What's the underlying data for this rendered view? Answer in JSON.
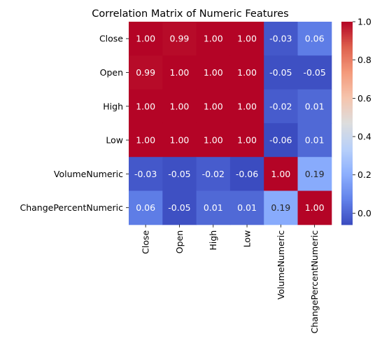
{
  "chart_data": {
    "type": "heatmap",
    "title": "Correlation Matrix of Numeric Features",
    "row_labels": [
      "Close",
      "Open",
      "High",
      "Low",
      "VolumeNumeric",
      "ChangePercentNumeric"
    ],
    "col_labels": [
      "Close",
      "Open",
      "High",
      "Low",
      "VolumeNumeric",
      "ChangePercentNumeric"
    ],
    "values": [
      [
        1.0,
        0.99,
        1.0,
        1.0,
        -0.03,
        0.06
      ],
      [
        0.99,
        1.0,
        1.0,
        1.0,
        -0.05,
        -0.05
      ],
      [
        1.0,
        1.0,
        1.0,
        1.0,
        -0.02,
        0.01
      ],
      [
        1.0,
        1.0,
        1.0,
        1.0,
        -0.06,
        0.01
      ],
      [
        -0.03,
        -0.05,
        -0.02,
        -0.06,
        1.0,
        0.19
      ],
      [
        0.06,
        -0.05,
        0.01,
        0.01,
        0.19,
        1.0
      ]
    ],
    "value_format": "2 decimals",
    "colormap": "coolwarm",
    "colorbar": {
      "range": [
        -0.06,
        1.0
      ],
      "ticks": [
        0.0,
        0.2,
        0.4,
        0.6,
        0.8,
        1.0
      ],
      "tick_labels": [
        "0.0",
        "0.2",
        "0.4",
        "0.6",
        "0.8",
        "1.0"
      ]
    }
  }
}
